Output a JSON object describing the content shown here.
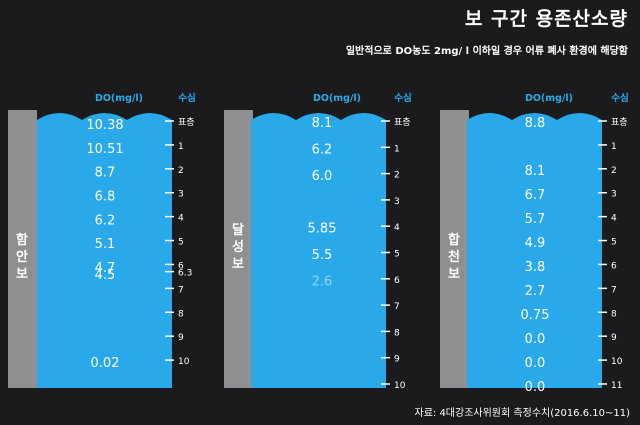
{
  "title": "보 구간 용존산소량",
  "subtitle": "일반적으로 DO농도 2mg/ l 이하일 경우 어류 폐사 환경에 해당함",
  "source": "자료: 4대강조사위원회 측정수치(2016.6.10~11)",
  "colors": {
    "water": "#29a8ea",
    "pillar": "#8f8f91",
    "background": "#1b1b1d",
    "header": "#2aa9e8",
    "faded_value": "#8fd6fa"
  },
  "chart_data": [
    {
      "type": "table",
      "name": "함안보",
      "value_header": "DO(mg/l)",
      "depth_header": "수심",
      "depth_labels": [
        "표층",
        "1",
        "2",
        "3",
        "4",
        "5",
        "6",
        "6.3",
        "7",
        "8",
        "9",
        "10"
      ],
      "readings": [
        {
          "depth": 0,
          "value": "10.38"
        },
        {
          "depth": 1,
          "value": "10.51"
        },
        {
          "depth": 2,
          "value": "8.7"
        },
        {
          "depth": 3,
          "value": "6.8"
        },
        {
          "depth": 4,
          "value": "6.2"
        },
        {
          "depth": 5,
          "value": "5.1"
        },
        {
          "depth": 6,
          "value": "4.7"
        },
        {
          "depth": 6.3,
          "value": "4.5"
        },
        {
          "depth": 10,
          "value": "0.02"
        }
      ]
    },
    {
      "type": "table",
      "name": "달성보",
      "value_header": "DO(mg/l)",
      "depth_header": "수심",
      "depth_labels": [
        "표층",
        "1",
        "2",
        "3",
        "4",
        "5",
        "6",
        "7",
        "8",
        "9",
        "10"
      ],
      "readings": [
        {
          "depth": 0,
          "value": "8.1"
        },
        {
          "depth": 1,
          "value": "6.2"
        },
        {
          "depth": 2,
          "value": "6.0"
        },
        {
          "depth": 4,
          "value": "5.85"
        },
        {
          "depth": 5,
          "value": "5.5"
        },
        {
          "depth": 6,
          "value": "2.6",
          "faded": true
        }
      ]
    },
    {
      "type": "table",
      "name": "합천보",
      "value_header": "DO(mg/l)",
      "depth_header": "수심",
      "depth_labels": [
        "표층",
        "1",
        "2",
        "3",
        "4",
        "5",
        "6",
        "7",
        "8",
        "9",
        "10",
        "11"
      ],
      "readings": [
        {
          "depth": 0,
          "value": "8.8"
        },
        {
          "depth": 2,
          "value": "8.1"
        },
        {
          "depth": 3,
          "value": "6.7"
        },
        {
          "depth": 4,
          "value": "5.7"
        },
        {
          "depth": 5,
          "value": "4.9"
        },
        {
          "depth": 6,
          "value": "3.8"
        },
        {
          "depth": 7,
          "value": "2.7"
        },
        {
          "depth": 8,
          "value": "0.75"
        },
        {
          "depth": 9,
          "value": "0.0"
        },
        {
          "depth": 10,
          "value": "0.0"
        },
        {
          "depth": 11,
          "value": "0.0"
        }
      ]
    }
  ]
}
